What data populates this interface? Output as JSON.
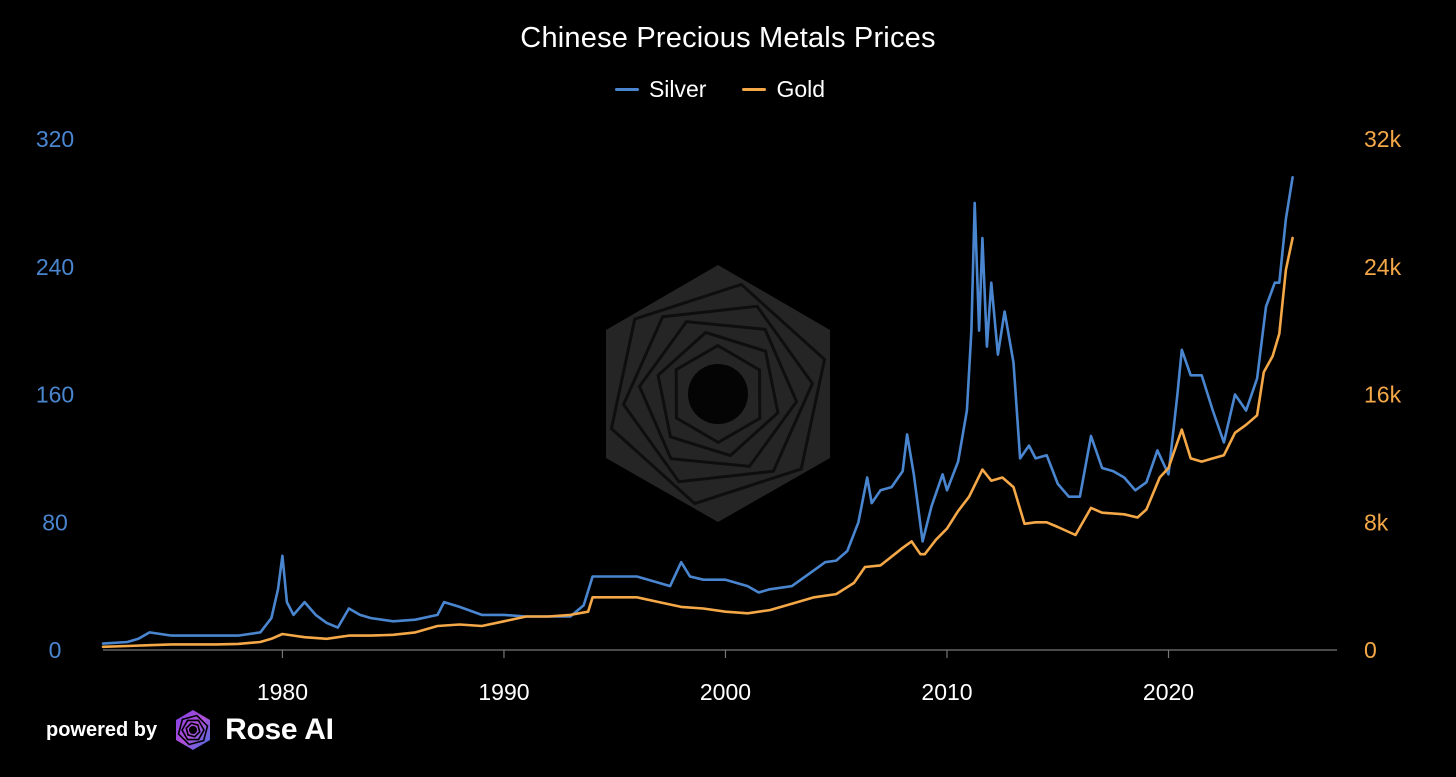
{
  "brand": {
    "powered_by": "powered by",
    "name": "Rose AI",
    "logo_icon": "rose-ai-logo-icon",
    "watermark_icon": "rose-ai-watermark-icon"
  },
  "colors": {
    "background": "#000000",
    "silver": "#4a86cf",
    "gold": "#f4a848",
    "text": "#ffffff",
    "axis": "#8a8a8a"
  },
  "chart_data": {
    "type": "line",
    "title": "Chinese Precious Metals Prices",
    "xlabel": "",
    "ylabel_left": "",
    "ylabel_right": "",
    "legend_position": "top-center",
    "grid": false,
    "x_ticks": [
      "1980",
      "1990",
      "2000",
      "2010",
      "2020"
    ],
    "x_range": [
      1971.9,
      2025.8
    ],
    "y_left": {
      "range": [
        0,
        320
      ],
      "ticks": [
        "0",
        "80",
        "160",
        "240",
        "320"
      ]
    },
    "y_right": {
      "range": [
        0,
        32000
      ],
      "ticks": [
        "0",
        "8k",
        "16k",
        "24k",
        "32k"
      ]
    },
    "series": [
      {
        "name": "Silver",
        "axis": "left",
        "color": "#4a86cf",
        "points": [
          [
            1971.9,
            4
          ],
          [
            1973.0,
            5
          ],
          [
            1973.5,
            7
          ],
          [
            1974.0,
            11
          ],
          [
            1975.0,
            9
          ],
          [
            1976.0,
            9
          ],
          [
            1977.0,
            9
          ],
          [
            1978.0,
            9
          ],
          [
            1979.0,
            11
          ],
          [
            1979.5,
            20
          ],
          [
            1979.8,
            38
          ],
          [
            1980.0,
            59
          ],
          [
            1980.2,
            30
          ],
          [
            1980.5,
            22
          ],
          [
            1981.0,
            30
          ],
          [
            1981.5,
            22
          ],
          [
            1982.0,
            17
          ],
          [
            1982.5,
            14
          ],
          [
            1983.0,
            26
          ],
          [
            1983.5,
            22
          ],
          [
            1984.0,
            20
          ],
          [
            1985.0,
            18
          ],
          [
            1986.0,
            19
          ],
          [
            1987.0,
            22
          ],
          [
            1987.3,
            30
          ],
          [
            1988.0,
            27
          ],
          [
            1989.0,
            22
          ],
          [
            1990.0,
            22
          ],
          [
            1991.0,
            21
          ],
          [
            1992.0,
            21
          ],
          [
            1993.0,
            21
          ],
          [
            1993.6,
            28
          ],
          [
            1994.0,
            46
          ],
          [
            1995.0,
            46
          ],
          [
            1996.0,
            46
          ],
          [
            1997.0,
            42
          ],
          [
            1997.5,
            40
          ],
          [
            1998.0,
            55
          ],
          [
            1998.4,
            46
          ],
          [
            1999.0,
            44
          ],
          [
            2000.0,
            44
          ],
          [
            2001.0,
            40
          ],
          [
            2001.5,
            36
          ],
          [
            2002.0,
            38
          ],
          [
            2003.0,
            40
          ],
          [
            2004.0,
            50
          ],
          [
            2004.5,
            55
          ],
          [
            2005.0,
            56
          ],
          [
            2005.5,
            62
          ],
          [
            2006.0,
            80
          ],
          [
            2006.4,
            108
          ],
          [
            2006.6,
            92
          ],
          [
            2007.0,
            100
          ],
          [
            2007.5,
            102
          ],
          [
            2008.0,
            112
          ],
          [
            2008.2,
            135
          ],
          [
            2008.5,
            110
          ],
          [
            2008.9,
            68
          ],
          [
            2009.3,
            90
          ],
          [
            2009.8,
            110
          ],
          [
            2010.0,
            100
          ],
          [
            2010.5,
            118
          ],
          [
            2010.9,
            150
          ],
          [
            2011.1,
            200
          ],
          [
            2011.25,
            280
          ],
          [
            2011.45,
            200
          ],
          [
            2011.6,
            258
          ],
          [
            2011.8,
            190
          ],
          [
            2012.0,
            230
          ],
          [
            2012.3,
            185
          ],
          [
            2012.6,
            212
          ],
          [
            2013.0,
            180
          ],
          [
            2013.3,
            120
          ],
          [
            2013.7,
            128
          ],
          [
            2014.0,
            120
          ],
          [
            2014.5,
            122
          ],
          [
            2015.0,
            104
          ],
          [
            2015.5,
            96
          ],
          [
            2016.0,
            96
          ],
          [
            2016.5,
            134
          ],
          [
            2017.0,
            114
          ],
          [
            2017.5,
            112
          ],
          [
            2018.0,
            108
          ],
          [
            2018.5,
            100
          ],
          [
            2019.0,
            105
          ],
          [
            2019.5,
            125
          ],
          [
            2020.0,
            110
          ],
          [
            2020.4,
            160
          ],
          [
            2020.6,
            188
          ],
          [
            2021.0,
            172
          ],
          [
            2021.5,
            172
          ],
          [
            2022.0,
            150
          ],
          [
            2022.5,
            130
          ],
          [
            2023.0,
            160
          ],
          [
            2023.5,
            150
          ],
          [
            2024.0,
            170
          ],
          [
            2024.4,
            215
          ],
          [
            2024.8,
            230
          ],
          [
            2025.0,
            230
          ],
          [
            2025.3,
            270
          ],
          [
            2025.6,
            296
          ]
        ]
      },
      {
        "name": "Gold",
        "axis": "right",
        "color": "#f4a848",
        "points": [
          [
            1971.9,
            200
          ],
          [
            1973.0,
            250
          ],
          [
            1974.0,
            300
          ],
          [
            1975.0,
            350
          ],
          [
            1976.0,
            350
          ],
          [
            1977.0,
            350
          ],
          [
            1978.0,
            380
          ],
          [
            1979.0,
            500
          ],
          [
            1979.5,
            700
          ],
          [
            1980.0,
            1000
          ],
          [
            1980.5,
            900
          ],
          [
            1981.0,
            800
          ],
          [
            1982.0,
            700
          ],
          [
            1983.0,
            900
          ],
          [
            1984.0,
            900
          ],
          [
            1985.0,
            950
          ],
          [
            1986.0,
            1100
          ],
          [
            1987.0,
            1500
          ],
          [
            1988.0,
            1600
          ],
          [
            1989.0,
            1500
          ],
          [
            1990.0,
            1800
          ],
          [
            1991.0,
            2100
          ],
          [
            1992.0,
            2100
          ],
          [
            1993.0,
            2200
          ],
          [
            1993.8,
            2400
          ],
          [
            1994.0,
            3300
          ],
          [
            1995.0,
            3300
          ],
          [
            1996.0,
            3300
          ],
          [
            1997.0,
            3000
          ],
          [
            1998.0,
            2700
          ],
          [
            1999.0,
            2600
          ],
          [
            2000.0,
            2400
          ],
          [
            2001.0,
            2300
          ],
          [
            2002.0,
            2500
          ],
          [
            2003.0,
            2900
          ],
          [
            2004.0,
            3300
          ],
          [
            2005.0,
            3500
          ],
          [
            2005.8,
            4200
          ],
          [
            2006.3,
            5200
          ],
          [
            2007.0,
            5300
          ],
          [
            2008.0,
            6400
          ],
          [
            2008.4,
            6800
          ],
          [
            2008.8,
            6000
          ],
          [
            2009.0,
            6000
          ],
          [
            2009.5,
            6900
          ],
          [
            2010.0,
            7600
          ],
          [
            2010.5,
            8700
          ],
          [
            2011.0,
            9600
          ],
          [
            2011.6,
            11300
          ],
          [
            2012.0,
            10600
          ],
          [
            2012.5,
            10800
          ],
          [
            2013.0,
            10200
          ],
          [
            2013.5,
            7900
          ],
          [
            2014.0,
            8000
          ],
          [
            2014.5,
            8000
          ],
          [
            2015.0,
            7700
          ],
          [
            2015.8,
            7200
          ],
          [
            2016.5,
            8900
          ],
          [
            2017.0,
            8600
          ],
          [
            2018.0,
            8500
          ],
          [
            2018.6,
            8300
          ],
          [
            2019.0,
            8800
          ],
          [
            2019.6,
            10800
          ],
          [
            2020.0,
            11400
          ],
          [
            2020.6,
            13800
          ],
          [
            2021.0,
            12000
          ],
          [
            2021.5,
            11800
          ],
          [
            2022.0,
            12000
          ],
          [
            2022.5,
            12200
          ],
          [
            2023.0,
            13600
          ],
          [
            2023.5,
            14100
          ],
          [
            2024.0,
            14700
          ],
          [
            2024.3,
            17400
          ],
          [
            2024.7,
            18400
          ],
          [
            2025.0,
            19800
          ],
          [
            2025.3,
            23800
          ],
          [
            2025.6,
            25800
          ]
        ]
      }
    ]
  }
}
